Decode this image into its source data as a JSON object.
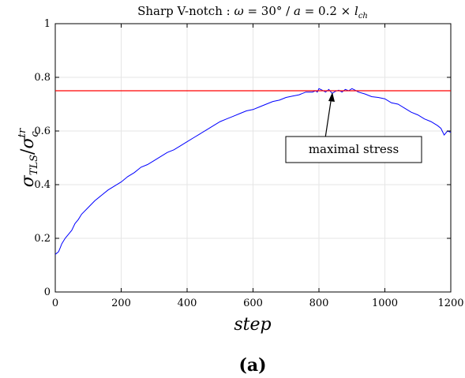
{
  "chart_data": {
    "type": "line",
    "title": {
      "prefix": "Sharp V-notch : ",
      "omega_sym": "ω",
      "eq1": " = ",
      "omega_val": "30°",
      "sep": " / ",
      "a_sym": "a",
      "eq2": " = ",
      "a_val": "0.2 × ",
      "l_sym": "l",
      "l_sub": "ch"
    },
    "xlabel": "step",
    "ylabel": {
      "sigma1": "σ",
      "sub1": "TLS",
      "slash": "/",
      "sigma2": "σ",
      "sub2": "c",
      "sup2": "tr"
    },
    "xlim": [
      0,
      1200
    ],
    "ylim": [
      0,
      1
    ],
    "xticks": [
      "0",
      "200",
      "400",
      "600",
      "800",
      "1000",
      "1200"
    ],
    "yticks": [
      "0",
      "0.2",
      "0.4",
      "0.6",
      "0.8",
      "1"
    ],
    "grid": true,
    "series": [
      {
        "color": "#0000ff",
        "x": [
          0,
          5,
          10,
          15,
          20,
          30,
          40,
          50,
          60,
          70,
          80,
          100,
          120,
          140,
          160,
          180,
          200,
          220,
          240,
          260,
          280,
          300,
          320,
          340,
          360,
          380,
          400,
          420,
          440,
          460,
          480,
          500,
          520,
          540,
          560,
          580,
          600,
          620,
          640,
          660,
          680,
          700,
          720,
          740,
          760,
          780,
          790,
          795,
          800,
          810,
          820,
          830,
          840,
          850,
          860,
          870,
          880,
          890,
          900,
          910,
          920,
          940,
          960,
          980,
          1000,
          1020,
          1040,
          1060,
          1080,
          1100,
          1120,
          1140,
          1160,
          1170,
          1180,
          1190,
          1200
        ],
        "y": [
          0.14,
          0.145,
          0.15,
          0.165,
          0.18,
          0.2,
          0.215,
          0.23,
          0.255,
          0.27,
          0.29,
          0.315,
          0.34,
          0.36,
          0.38,
          0.395,
          0.41,
          0.43,
          0.445,
          0.465,
          0.475,
          0.49,
          0.505,
          0.52,
          0.53,
          0.545,
          0.56,
          0.575,
          0.59,
          0.605,
          0.62,
          0.635,
          0.645,
          0.655,
          0.665,
          0.675,
          0.68,
          0.69,
          0.7,
          0.71,
          0.715,
          0.725,
          0.73,
          0.735,
          0.745,
          0.745,
          0.75,
          0.745,
          0.758,
          0.752,
          0.745,
          0.755,
          0.74,
          0.748,
          0.752,
          0.745,
          0.755,
          0.75,
          0.758,
          0.752,
          0.745,
          0.738,
          0.728,
          0.725,
          0.72,
          0.705,
          0.7,
          0.685,
          0.67,
          0.66,
          0.645,
          0.635,
          0.62,
          0.61,
          0.585,
          0.6,
          0.595
        ]
      },
      {
        "color": "#ff0000",
        "x": [
          0,
          1200
        ],
        "y": [
          0.75,
          0.75
        ]
      }
    ],
    "annotation": {
      "text": "maximal stress",
      "point_x": 840,
      "point_y": 0.75
    }
  },
  "caption": "(a)"
}
